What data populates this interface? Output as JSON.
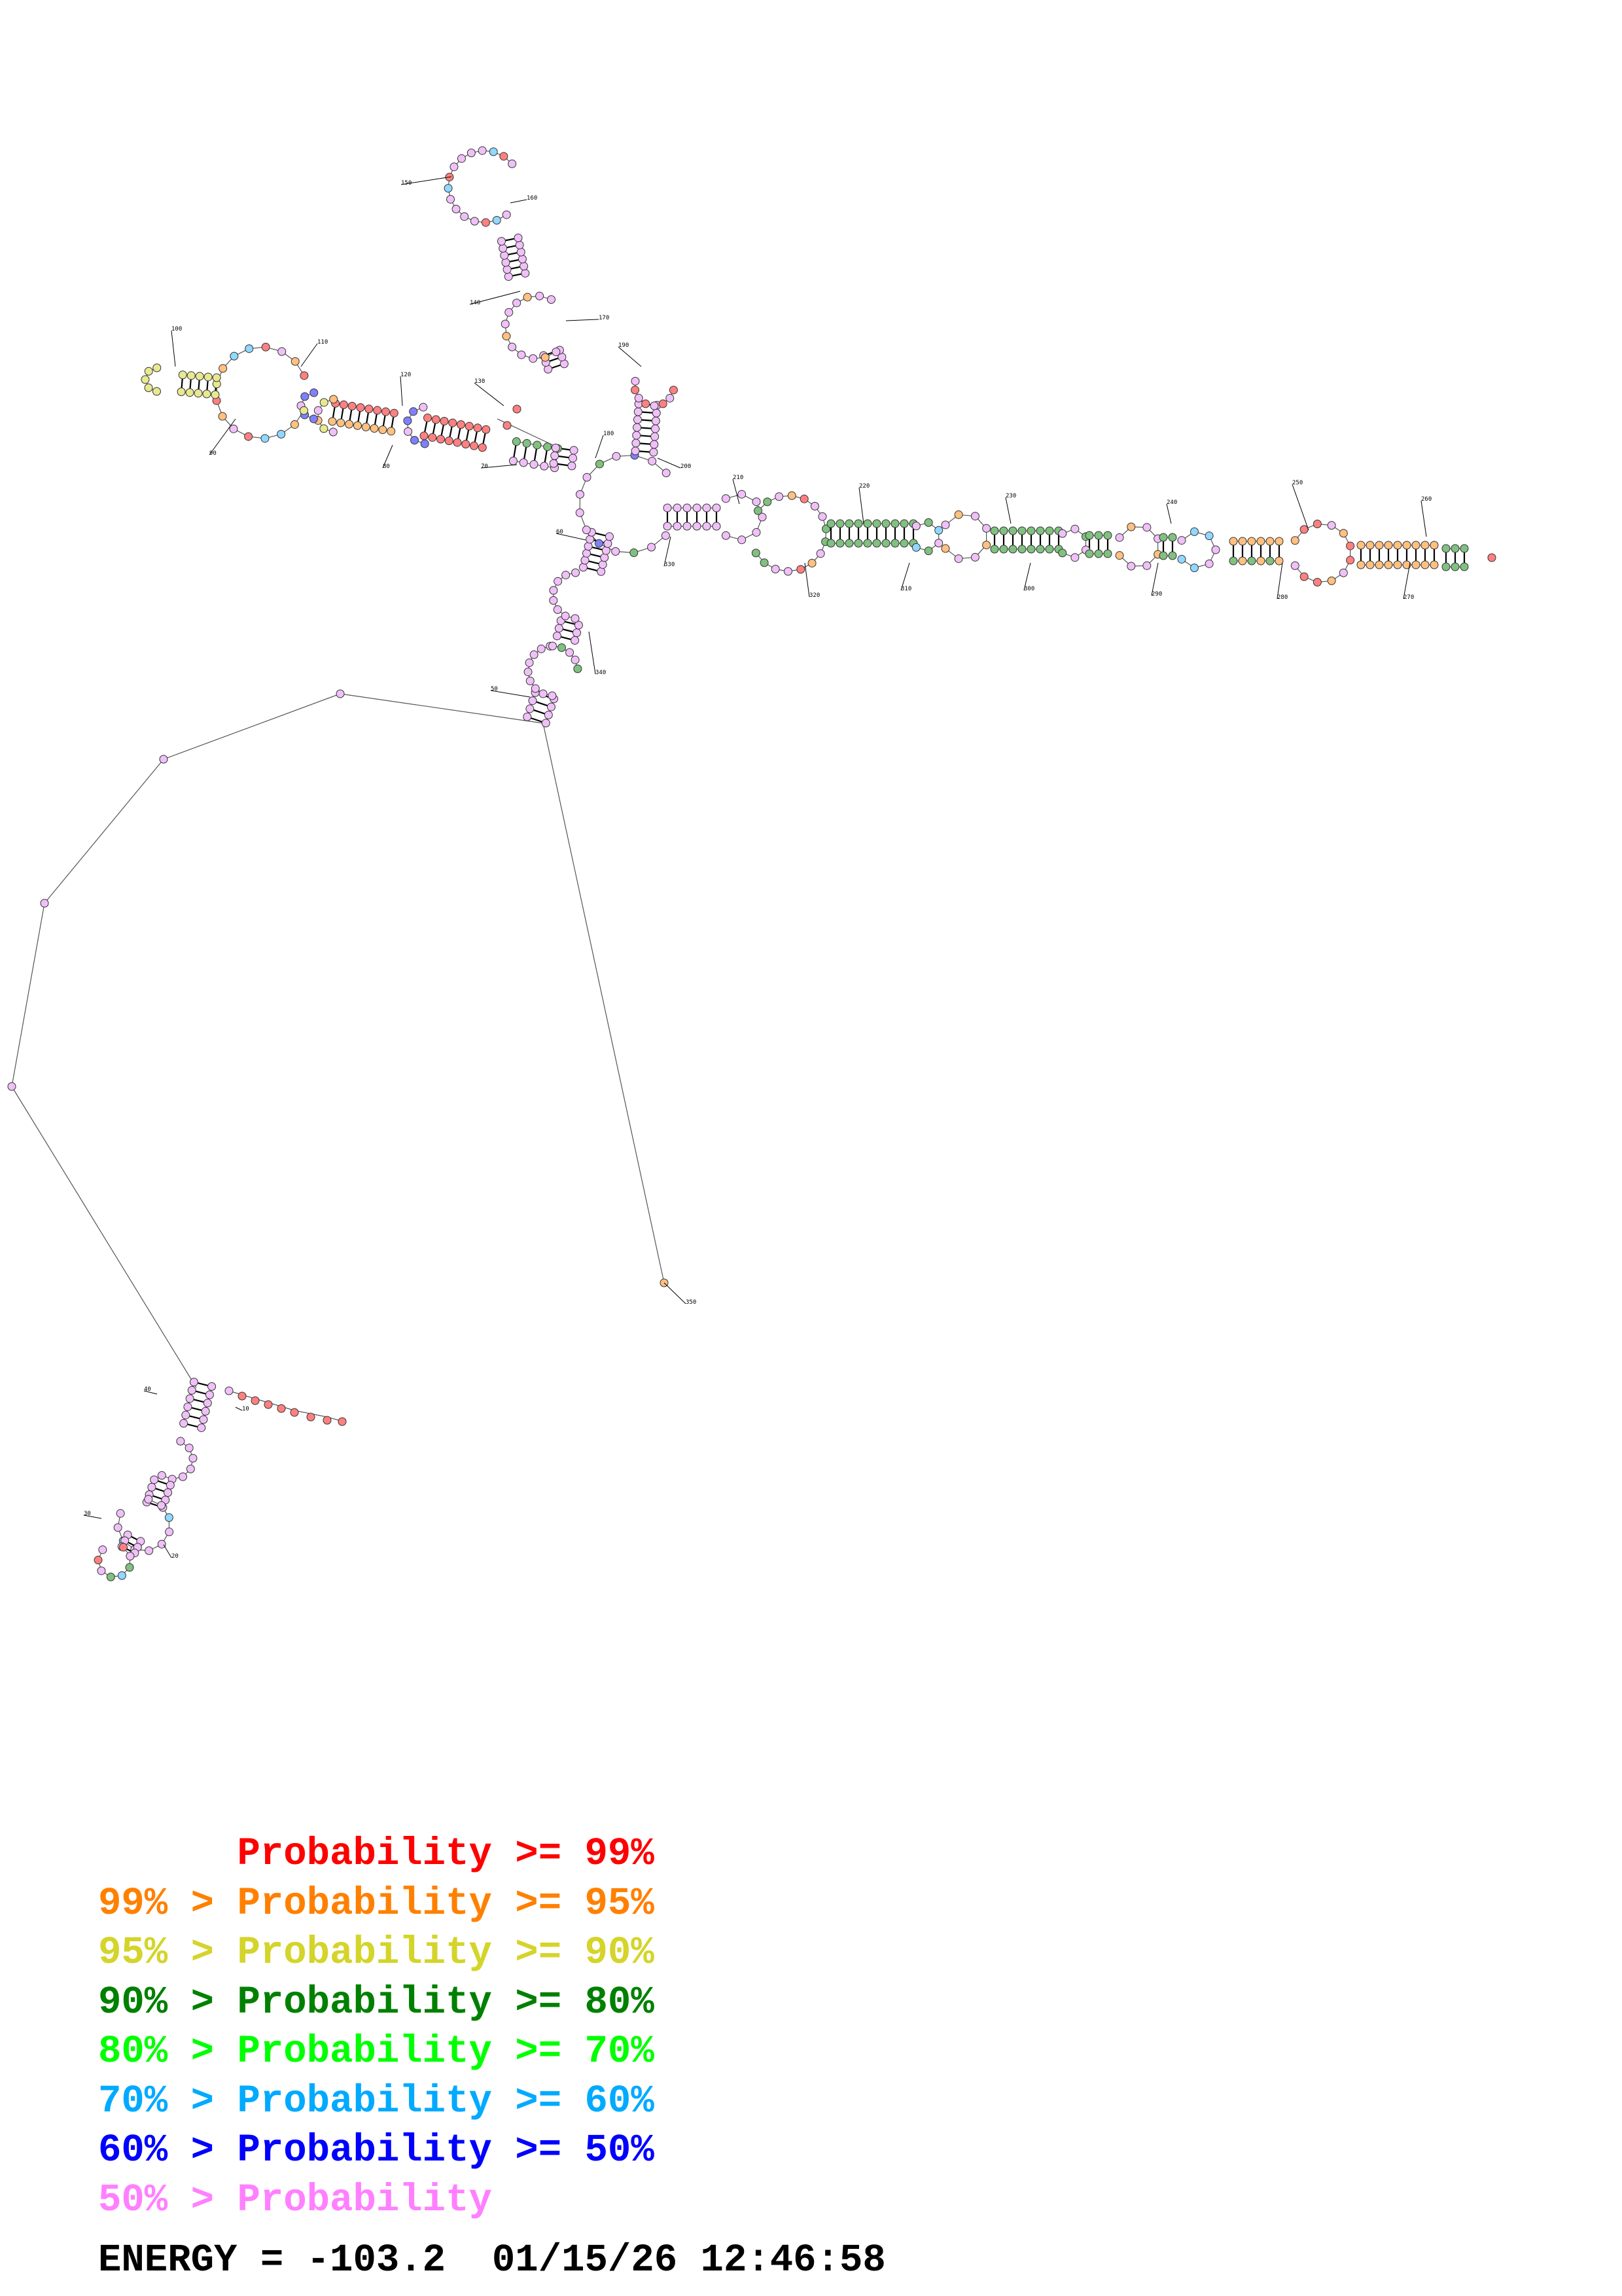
{
  "legend": [
    {
      "prefix": "",
      "text": "Probability >= 99%",
      "color": "#ff0000"
    },
    {
      "prefix": "99% > ",
      "text": "Probability >= 95%",
      "color": "#ff8000"
    },
    {
      "prefix": "95% > ",
      "text": "Probability >= 90%",
      "color": "#d4d42a"
    },
    {
      "prefix": "90% > ",
      "text": "Probability >= 80%",
      "color": "#008000"
    },
    {
      "prefix": "80% > ",
      "text": "Probability >= 70%",
      "color": "#00ff00"
    },
    {
      "prefix": "70% > ",
      "text": "Probability >= 60%",
      "color": "#00aaff"
    },
    {
      "prefix": "60% > ",
      "text": "Probability >= 50%",
      "color": "#0000ff"
    },
    {
      "prefix": "50% > ",
      "text": "Probability",
      "color": "#ff80ff"
    }
  ],
  "energy_label": "ENERGY = -103.2",
  "timestamp": "01/15/26 12:46:58",
  "position_labels": [
    "10",
    "20",
    "30",
    "40",
    "50",
    "60",
    "70",
    "80",
    "90",
    "100",
    "110",
    "120",
    "130",
    "140",
    "150",
    "160",
    "170",
    "180",
    "190",
    "200",
    "210",
    "220",
    "230",
    "240",
    "250",
    "260",
    "270",
    "280",
    "290",
    "300",
    "310",
    "320",
    "330",
    "340",
    "350"
  ],
  "colors": {
    "p99": "#ff8080",
    "p95": "#ffc080",
    "p90": "#e8e890",
    "p80": "#80c080",
    "p70": "#90f090",
    "p60": "#90d8ff",
    "p50": "#8080ff",
    "low": "#f0c0f8",
    "stroke": "#000000"
  }
}
